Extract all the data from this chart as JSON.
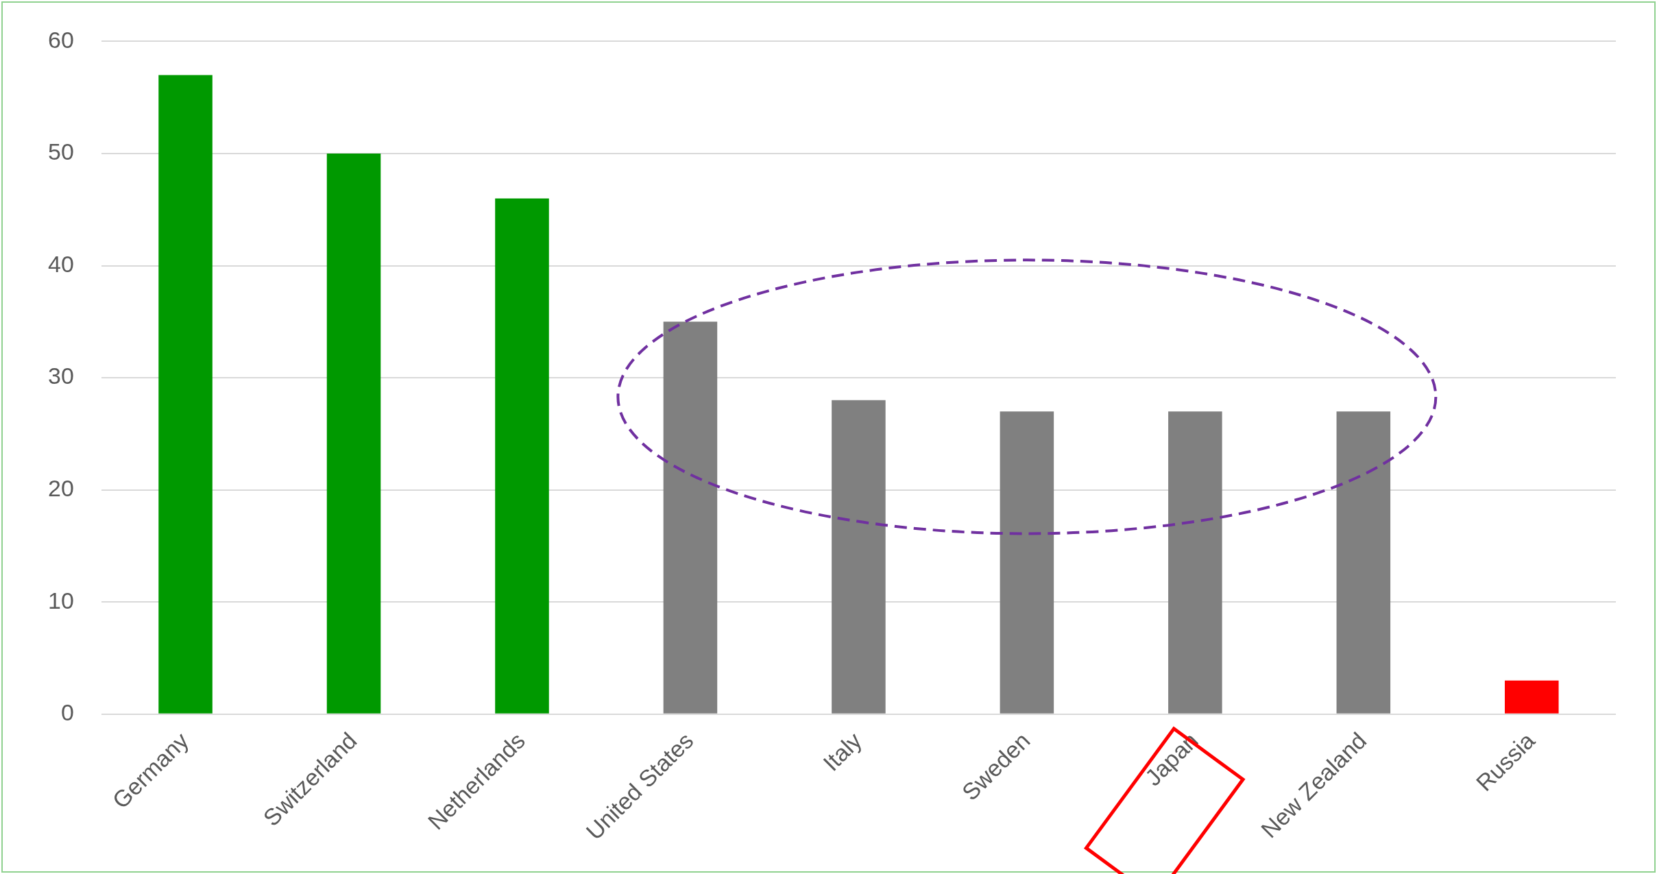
{
  "chart_data": {
    "type": "bar",
    "categories": [
      "Germany",
      "Switzerland",
      "Netherlands",
      "United States",
      "Italy",
      "Sweden",
      "Japan",
      "New Zealand",
      "Russia"
    ],
    "values": [
      57,
      50,
      46,
      35,
      28,
      27,
      27,
      27,
      3
    ],
    "colors": [
      "#009900",
      "#009900",
      "#009900",
      "#808080",
      "#808080",
      "#808080",
      "#808080",
      "#808080",
      "#ff0000"
    ],
    "ylim": [
      0,
      60
    ],
    "yticks": [
      0,
      10,
      20,
      30,
      40,
      50,
      60
    ],
    "grid": "y",
    "legend": false
  }
}
